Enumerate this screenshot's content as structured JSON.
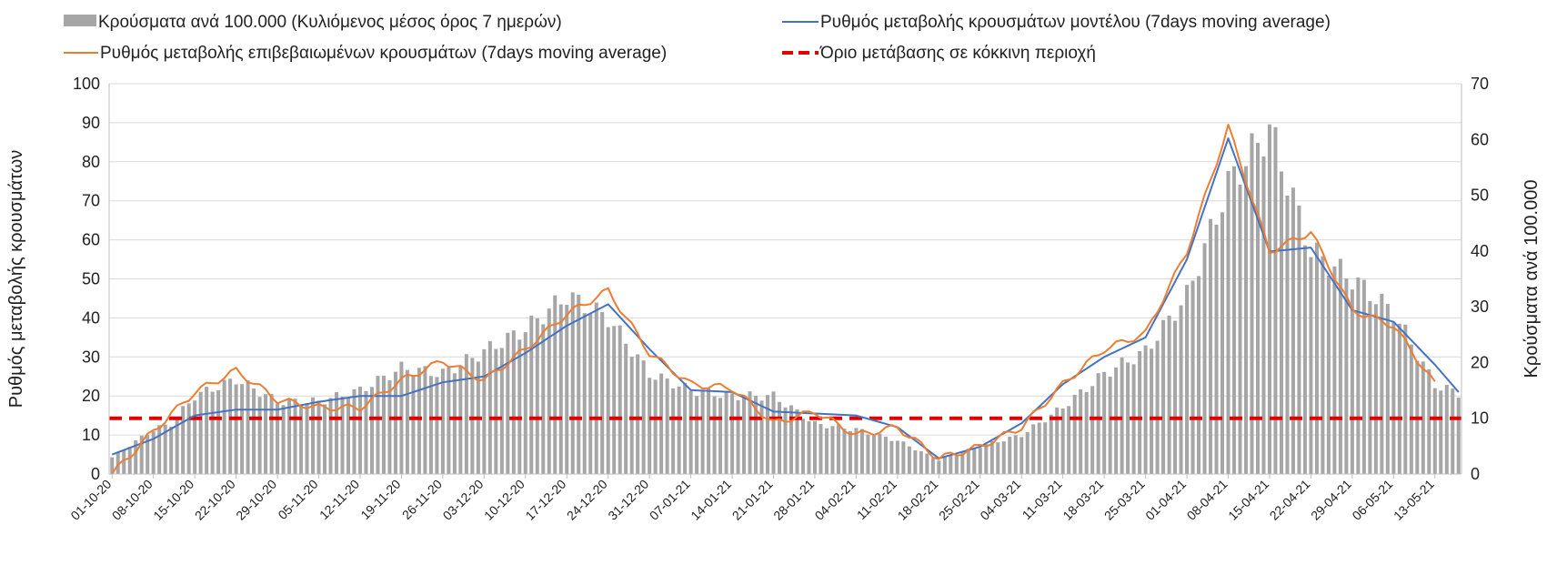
{
  "chart_data": {
    "type": "bar+line",
    "title": "",
    "legend_position": "top",
    "grid": true,
    "y_left": {
      "label": "Ρυθμός μεταβολής κρουσμάτων",
      "min": 0,
      "max": 100,
      "ticks": [
        0,
        10,
        20,
        30,
        40,
        50,
        60,
        70,
        80,
        90,
        100
      ]
    },
    "y_right": {
      "label": "Κρούσματα ανά 100.000",
      "min": 0,
      "max": 70,
      "ticks": [
        0,
        10,
        20,
        30,
        40,
        50,
        60,
        70
      ]
    },
    "x_labels": [
      "01-10-20",
      "08-10-20",
      "15-10-20",
      "22-10-20",
      "29-10-20",
      "05-11-20",
      "12-11-20",
      "19-11-20",
      "26-11-20",
      "03-12-20",
      "10-12-20",
      "17-12-20",
      "24-12-20",
      "31-12-20",
      "07-01-21",
      "14-01-21",
      "21-01-21",
      "28-01-21",
      "04-02-21",
      "11-02-21",
      "18-02-21",
      "25-02-21",
      "04-03-21",
      "11-03-21",
      "18-03-21",
      "25-03-21",
      "01-04-21",
      "08-04-21",
      "15-04-21",
      "22-04-21",
      "29-04-21",
      "06-05-21",
      "13-05-21"
    ],
    "x_start_label": "01-10-20",
    "day_count": 229,
    "legend": {
      "bars": "Κρούσματα ανά 100.000 (Κυλιόμενος μέσος όρος 7 ημερών)",
      "model": "Ρυθμός μεταβολής κρουσμάτων μοντέλου (7days moving average)",
      "confirmed": "Ρυθμός μεταβολής επιβεβαιωμένων κρουσμάτων (7days moving average)",
      "threshold": "Όριο μετάβασης σε κόκκινη περιοχή"
    },
    "colors": {
      "bars": "#a6a6a6",
      "model": "#4472c4",
      "confirmed": "#ed7d31",
      "threshold": "#e00000",
      "grid": "#d9d9d9"
    },
    "threshold_value_right_axis": 10,
    "bars_right_axis": [
      [
        0,
        3
      ],
      [
        7,
        8
      ],
      [
        10,
        9
      ],
      [
        14,
        14
      ],
      [
        21,
        17
      ],
      [
        28,
        13
      ],
      [
        35,
        13
      ],
      [
        42,
        15
      ],
      [
        49,
        19
      ],
      [
        56,
        18
      ],
      [
        63,
        22
      ],
      [
        70,
        26
      ],
      [
        77,
        32
      ],
      [
        84,
        28
      ],
      [
        91,
        18
      ],
      [
        98,
        15
      ],
      [
        105,
        14
      ],
      [
        112,
        14
      ],
      [
        119,
        9
      ],
      [
        126,
        8
      ],
      [
        133,
        6
      ],
      [
        140,
        2.5
      ],
      [
        147,
        5
      ],
      [
        154,
        7
      ],
      [
        161,
        12
      ],
      [
        168,
        18
      ],
      [
        175,
        22
      ],
      [
        182,
        32
      ],
      [
        189,
        52
      ],
      [
        196,
        62
      ],
      [
        203,
        40
      ],
      [
        210,
        35
      ],
      [
        217,
        29
      ],
      [
        224,
        16
      ],
      [
        228,
        14.5
      ]
    ],
    "bars_right_axis_note": "",
    "series_left_axis": [
      {
        "name": "model",
        "points": [
          [
            0,
            5
          ],
          [
            7,
            9
          ],
          [
            14,
            15
          ],
          [
            21,
            16.5
          ],
          [
            28,
            16.5
          ],
          [
            35,
            18.5
          ],
          [
            42,
            20
          ],
          [
            49,
            20
          ],
          [
            56,
            23.5
          ],
          [
            63,
            25
          ],
          [
            70,
            31
          ],
          [
            77,
            38
          ],
          [
            84,
            43.5
          ],
          [
            91,
            32
          ],
          [
            98,
            21.5
          ],
          [
            105,
            21
          ],
          [
            112,
            16
          ],
          [
            119,
            15.5
          ],
          [
            126,
            15
          ],
          [
            133,
            12
          ],
          [
            140,
            4
          ],
          [
            147,
            7
          ],
          [
            154,
            13
          ],
          [
            161,
            23
          ],
          [
            168,
            30
          ],
          [
            175,
            35
          ],
          [
            182,
            55
          ],
          [
            189,
            86
          ],
          [
            196,
            57
          ],
          [
            203,
            58
          ],
          [
            210,
            42
          ],
          [
            217,
            39
          ],
          [
            224,
            28
          ],
          [
            228,
            21
          ]
        ]
      },
      {
        "name": "confirmed",
        "points": [
          [
            0,
            0
          ],
          [
            7,
            11
          ],
          [
            14,
            21
          ],
          [
            21,
            26.5
          ],
          [
            28,
            19
          ],
          [
            35,
            17
          ],
          [
            42,
            17
          ],
          [
            49,
            24
          ],
          [
            56,
            29
          ],
          [
            63,
            24
          ],
          [
            70,
            32
          ],
          [
            77,
            41
          ],
          [
            84,
            47
          ],
          [
            91,
            31
          ],
          [
            98,
            23
          ],
          [
            105,
            22
          ],
          [
            112,
            13
          ],
          [
            119,
            16
          ],
          [
            126,
            10
          ],
          [
            133,
            12
          ],
          [
            140,
            4
          ],
          [
            147,
            7
          ],
          [
            154,
            12
          ],
          [
            161,
            23
          ],
          [
            168,
            32
          ],
          [
            175,
            36
          ],
          [
            182,
            57
          ],
          [
            189,
            89
          ],
          [
            196,
            57
          ],
          [
            203,
            62
          ],
          [
            210,
            42
          ],
          [
            217,
            38
          ],
          [
            224,
            23
          ]
        ]
      }
    ]
  }
}
